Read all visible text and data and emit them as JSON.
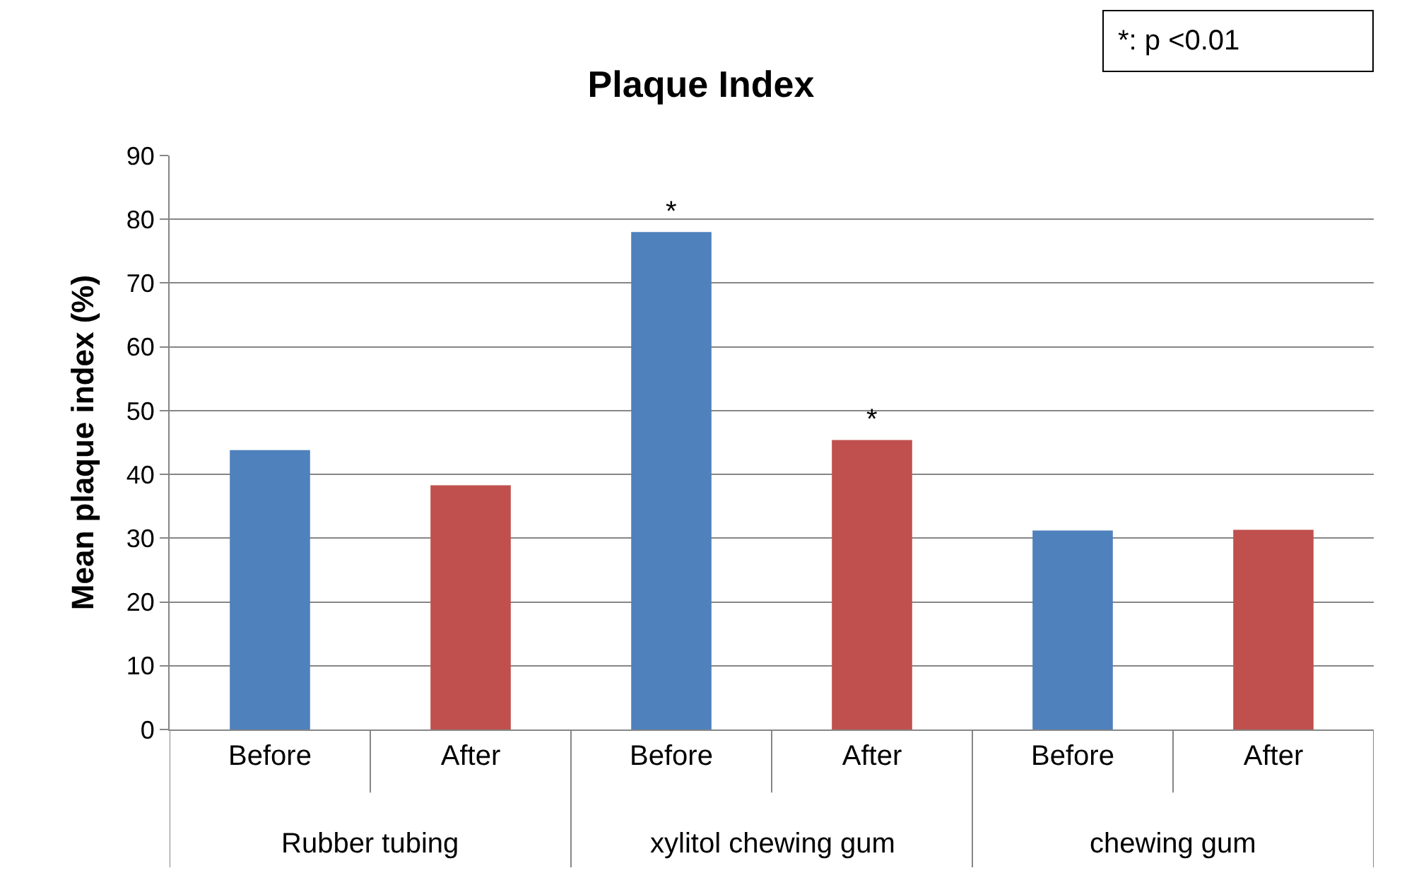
{
  "chart_data": {
    "type": "bar",
    "title": "Plaque Index",
    "ylabel": "Mean plaque index (%)",
    "categories": [
      "Before",
      "After",
      "Before",
      "After",
      "Before",
      "After"
    ],
    "values": [
      43.8,
      38.3,
      78,
      45.4,
      31.2,
      31.3
    ],
    "colors": [
      "#4f81bd",
      "#c0504d",
      "#4f81bd",
      "#c0504d",
      "#4f81bd",
      "#c0504d"
    ],
    "value_labels": [
      null,
      null,
      "*",
      "*",
      null,
      null
    ],
    "annotations": [
      "*: p <0.01",
      "Rubber tubing",
      "xylitol chewing gum",
      "chewing gum"
    ],
    "ylim": [
      0,
      90
    ],
    "yticks": [
      0,
      10,
      20,
      30,
      40,
      50,
      60,
      70,
      80,
      90
    ],
    "grid": "y",
    "legend": false
  }
}
